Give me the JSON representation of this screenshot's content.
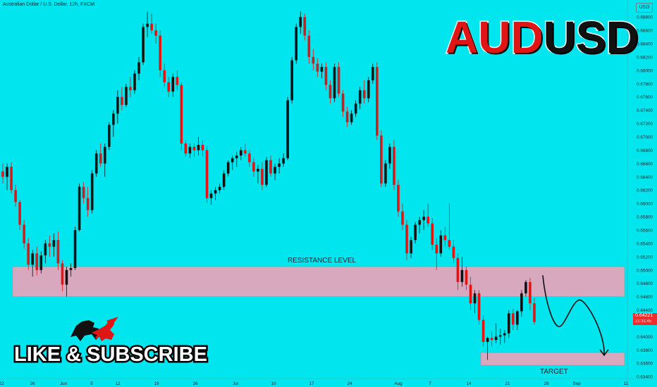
{
  "header": {
    "instrument": "Australian Dollar / U.S. Dollar, 12h, FXCM",
    "currency_badge": "USD"
  },
  "title": {
    "part1": "AUD",
    "part2": "USD"
  },
  "promo": {
    "text": "LIKE & SUBSCRIBE",
    "logo_icon": "bull-bear-icon"
  },
  "price_badge": {
    "price": "0.64221",
    "countdown": "21:31:45"
  },
  "colors": {
    "background": "#00e5ee",
    "bull_candle": "#111111",
    "bear_candle": "#e01616",
    "zone_fill": "#d8a9be",
    "zone_border": "#b98aa0"
  },
  "chart_data": {
    "type": "candlestick",
    "ylim": [
      0.6337,
      0.6895
    ],
    "y_ticks": [
      "0.68800",
      "0.68600",
      "0.68400",
      "0.68200",
      "0.68000",
      "0.67800",
      "0.67600",
      "0.67400",
      "0.67200",
      "0.67000",
      "0.66800",
      "0.66600",
      "0.66400",
      "0.66200",
      "0.66000",
      "0.65800",
      "0.65600",
      "0.65400",
      "0.65200",
      "0.65000",
      "0.64800",
      "0.64600",
      "0.64400",
      "0.64200",
      "0.64000",
      "0.63800",
      "0.63600",
      "0.63400"
    ],
    "x_ticks": [
      "22",
      "26",
      "Jun",
      "5",
      "12",
      "19",
      "26",
      "Jul",
      "10",
      "17",
      "24",
      "Aug",
      "7",
      "14",
      "21",
      "28",
      "Sep",
      "11"
    ],
    "zones": [
      {
        "label": "RESISTANCE LEVEL",
        "low": 0.646,
        "high": 0.6505
      },
      {
        "label": "TARGET",
        "low": 0.6357,
        "high": 0.6376
      }
    ],
    "candles": [
      {
        "o": 0.6648,
        "h": 0.666,
        "l": 0.663,
        "c": 0.664
      },
      {
        "o": 0.664,
        "h": 0.666,
        "l": 0.662,
        "c": 0.6655
      },
      {
        "o": 0.6655,
        "h": 0.6662,
        "l": 0.6615,
        "c": 0.662
      },
      {
        "o": 0.662,
        "h": 0.6628,
        "l": 0.6595,
        "c": 0.6602
      },
      {
        "o": 0.6602,
        "h": 0.6605,
        "l": 0.656,
        "c": 0.6568
      },
      {
        "o": 0.6568,
        "h": 0.6575,
        "l": 0.6532,
        "c": 0.654
      },
      {
        "o": 0.654,
        "h": 0.6548,
        "l": 0.65,
        "c": 0.6508
      },
      {
        "o": 0.6508,
        "h": 0.653,
        "l": 0.649,
        "c": 0.6525
      },
      {
        "o": 0.6525,
        "h": 0.6535,
        "l": 0.6492,
        "c": 0.65
      },
      {
        "o": 0.65,
        "h": 0.6528,
        "l": 0.6495,
        "c": 0.6522
      },
      {
        "o": 0.6522,
        "h": 0.6545,
        "l": 0.651,
        "c": 0.654
      },
      {
        "o": 0.654,
        "h": 0.6552,
        "l": 0.652,
        "c": 0.6535
      },
      {
        "o": 0.6535,
        "h": 0.6555,
        "l": 0.652,
        "c": 0.6545
      },
      {
        "o": 0.6545,
        "h": 0.6558,
        "l": 0.65,
        "c": 0.651
      },
      {
        "o": 0.651,
        "h": 0.6515,
        "l": 0.6468,
        "c": 0.6478
      },
      {
        "o": 0.6478,
        "h": 0.6505,
        "l": 0.646,
        "c": 0.65
      },
      {
        "o": 0.65,
        "h": 0.651,
        "l": 0.649,
        "c": 0.6503
      },
      {
        "o": 0.6503,
        "h": 0.6565,
        "l": 0.65,
        "c": 0.656
      },
      {
        "o": 0.656,
        "h": 0.663,
        "l": 0.6558,
        "c": 0.6625
      },
      {
        "o": 0.6625,
        "h": 0.6632,
        "l": 0.66,
        "c": 0.6608
      },
      {
        "o": 0.6608,
        "h": 0.6625,
        "l": 0.658,
        "c": 0.659
      },
      {
        "o": 0.659,
        "h": 0.665,
        "l": 0.6585,
        "c": 0.6645
      },
      {
        "o": 0.6645,
        "h": 0.668,
        "l": 0.664,
        "c": 0.6675
      },
      {
        "o": 0.6675,
        "h": 0.669,
        "l": 0.6655,
        "c": 0.666
      },
      {
        "o": 0.666,
        "h": 0.669,
        "l": 0.664,
        "c": 0.6685
      },
      {
        "o": 0.6685,
        "h": 0.6722,
        "l": 0.668,
        "c": 0.6718
      },
      {
        "o": 0.6718,
        "h": 0.674,
        "l": 0.67,
        "c": 0.6735
      },
      {
        "o": 0.6735,
        "h": 0.677,
        "l": 0.672,
        "c": 0.676
      },
      {
        "o": 0.676,
        "h": 0.6775,
        "l": 0.674,
        "c": 0.6748
      },
      {
        "o": 0.6748,
        "h": 0.678,
        "l": 0.6745,
        "c": 0.6775
      },
      {
        "o": 0.6775,
        "h": 0.679,
        "l": 0.676,
        "c": 0.677
      },
      {
        "o": 0.677,
        "h": 0.68,
        "l": 0.6765,
        "c": 0.6795
      },
      {
        "o": 0.6795,
        "h": 0.682,
        "l": 0.6785,
        "c": 0.6812
      },
      {
        "o": 0.6812,
        "h": 0.687,
        "l": 0.6808,
        "c": 0.6865
      },
      {
        "o": 0.6865,
        "h": 0.6888,
        "l": 0.685,
        "c": 0.687
      },
      {
        "o": 0.687,
        "h": 0.6885,
        "l": 0.6855,
        "c": 0.686
      },
      {
        "o": 0.686,
        "h": 0.687,
        "l": 0.684,
        "c": 0.6852
      },
      {
        "o": 0.6852,
        "h": 0.686,
        "l": 0.679,
        "c": 0.68
      },
      {
        "o": 0.68,
        "h": 0.681,
        "l": 0.6775,
        "c": 0.6782
      },
      {
        "o": 0.6782,
        "h": 0.679,
        "l": 0.676,
        "c": 0.6768
      },
      {
        "o": 0.6768,
        "h": 0.6795,
        "l": 0.676,
        "c": 0.679
      },
      {
        "o": 0.679,
        "h": 0.68,
        "l": 0.677,
        "c": 0.6778
      },
      {
        "o": 0.6778,
        "h": 0.6782,
        "l": 0.668,
        "c": 0.669
      },
      {
        "o": 0.669,
        "h": 0.6695,
        "l": 0.667,
        "c": 0.6675
      },
      {
        "o": 0.6675,
        "h": 0.669,
        "l": 0.6668,
        "c": 0.6685
      },
      {
        "o": 0.6685,
        "h": 0.669,
        "l": 0.667,
        "c": 0.668
      },
      {
        "o": 0.668,
        "h": 0.67,
        "l": 0.6672,
        "c": 0.6688
      },
      {
        "o": 0.6688,
        "h": 0.6695,
        "l": 0.667,
        "c": 0.668
      },
      {
        "o": 0.668,
        "h": 0.6686,
        "l": 0.66,
        "c": 0.6608
      },
      {
        "o": 0.6608,
        "h": 0.662,
        "l": 0.6598,
        "c": 0.6615
      },
      {
        "o": 0.6615,
        "h": 0.6625,
        "l": 0.6605,
        "c": 0.662
      },
      {
        "o": 0.662,
        "h": 0.663,
        "l": 0.6615,
        "c": 0.6625
      },
      {
        "o": 0.6625,
        "h": 0.665,
        "l": 0.662,
        "c": 0.6645
      },
      {
        "o": 0.6645,
        "h": 0.6665,
        "l": 0.664,
        "c": 0.6662
      },
      {
        "o": 0.6662,
        "h": 0.6672,
        "l": 0.665,
        "c": 0.6668
      },
      {
        "o": 0.6668,
        "h": 0.6678,
        "l": 0.6655,
        "c": 0.6672
      },
      {
        "o": 0.6672,
        "h": 0.6685,
        "l": 0.6665,
        "c": 0.668
      },
      {
        "o": 0.668,
        "h": 0.669,
        "l": 0.667,
        "c": 0.6675
      },
      {
        "o": 0.6675,
        "h": 0.668,
        "l": 0.6655,
        "c": 0.6662
      },
      {
        "o": 0.6662,
        "h": 0.6668,
        "l": 0.664,
        "c": 0.6648
      },
      {
        "o": 0.6648,
        "h": 0.6658,
        "l": 0.663,
        "c": 0.6652
      },
      {
        "o": 0.6652,
        "h": 0.6662,
        "l": 0.662,
        "c": 0.6628
      },
      {
        "o": 0.6628,
        "h": 0.667,
        "l": 0.6625,
        "c": 0.6665
      },
      {
        "o": 0.6665,
        "h": 0.6672,
        "l": 0.664,
        "c": 0.6645
      },
      {
        "o": 0.6645,
        "h": 0.666,
        "l": 0.6635,
        "c": 0.6655
      },
      {
        "o": 0.6655,
        "h": 0.6668,
        "l": 0.6645,
        "c": 0.666
      },
      {
        "o": 0.666,
        "h": 0.6675,
        "l": 0.6655,
        "c": 0.6668
      },
      {
        "o": 0.6668,
        "h": 0.676,
        "l": 0.6665,
        "c": 0.6755
      },
      {
        "o": 0.6755,
        "h": 0.682,
        "l": 0.675,
        "c": 0.6815
      },
      {
        "o": 0.6815,
        "h": 0.687,
        "l": 0.681,
        "c": 0.6865
      },
      {
        "o": 0.6865,
        "h": 0.6888,
        "l": 0.6855,
        "c": 0.688
      },
      {
        "o": 0.688,
        "h": 0.6885,
        "l": 0.6845,
        "c": 0.6852
      },
      {
        "o": 0.6852,
        "h": 0.686,
        "l": 0.681,
        "c": 0.682
      },
      {
        "o": 0.682,
        "h": 0.6832,
        "l": 0.68,
        "c": 0.681
      },
      {
        "o": 0.681,
        "h": 0.6818,
        "l": 0.679,
        "c": 0.6798
      },
      {
        "o": 0.6798,
        "h": 0.681,
        "l": 0.6788,
        "c": 0.6805
      },
      {
        "o": 0.6805,
        "h": 0.6812,
        "l": 0.677,
        "c": 0.6778
      },
      {
        "o": 0.6778,
        "h": 0.6785,
        "l": 0.675,
        "c": 0.6758
      },
      {
        "o": 0.6758,
        "h": 0.681,
        "l": 0.6752,
        "c": 0.6805
      },
      {
        "o": 0.6805,
        "h": 0.6812,
        "l": 0.676,
        "c": 0.6765
      },
      {
        "o": 0.6765,
        "h": 0.677,
        "l": 0.673,
        "c": 0.6738
      },
      {
        "o": 0.6738,
        "h": 0.6745,
        "l": 0.6715,
        "c": 0.6722
      },
      {
        "o": 0.6722,
        "h": 0.674,
        "l": 0.6718,
        "c": 0.6735
      },
      {
        "o": 0.6735,
        "h": 0.6755,
        "l": 0.673,
        "c": 0.675
      },
      {
        "o": 0.675,
        "h": 0.6775,
        "l": 0.6742,
        "c": 0.677
      },
      {
        "o": 0.677,
        "h": 0.6785,
        "l": 0.675,
        "c": 0.6758
      },
      {
        "o": 0.6758,
        "h": 0.679,
        "l": 0.6752,
        "c": 0.6785
      },
      {
        "o": 0.6785,
        "h": 0.681,
        "l": 0.678,
        "c": 0.6805
      },
      {
        "o": 0.6805,
        "h": 0.6812,
        "l": 0.6695,
        "c": 0.6702
      },
      {
        "o": 0.6702,
        "h": 0.671,
        "l": 0.6625,
        "c": 0.663
      },
      {
        "o": 0.663,
        "h": 0.6665,
        "l": 0.6625,
        "c": 0.666
      },
      {
        "o": 0.666,
        "h": 0.669,
        "l": 0.6652,
        "c": 0.6685
      },
      {
        "o": 0.6685,
        "h": 0.6695,
        "l": 0.662,
        "c": 0.6628
      },
      {
        "o": 0.6628,
        "h": 0.6635,
        "l": 0.658,
        "c": 0.6588
      },
      {
        "o": 0.6588,
        "h": 0.66,
        "l": 0.656,
        "c": 0.6568
      },
      {
        "o": 0.6568,
        "h": 0.6575,
        "l": 0.6515,
        "c": 0.6525
      },
      {
        "o": 0.6525,
        "h": 0.655,
        "l": 0.6518,
        "c": 0.6545
      },
      {
        "o": 0.6545,
        "h": 0.6572,
        "l": 0.654,
        "c": 0.6568
      },
      {
        "o": 0.6568,
        "h": 0.658,
        "l": 0.6555,
        "c": 0.6575
      },
      {
        "o": 0.6575,
        "h": 0.659,
        "l": 0.656,
        "c": 0.658
      },
      {
        "o": 0.658,
        "h": 0.66,
        "l": 0.6565,
        "c": 0.657
      },
      {
        "o": 0.657,
        "h": 0.6578,
        "l": 0.653,
        "c": 0.6538
      },
      {
        "o": 0.6538,
        "h": 0.6548,
        "l": 0.65,
        "c": 0.6525
      },
      {
        "o": 0.6525,
        "h": 0.656,
        "l": 0.652,
        "c": 0.6552
      },
      {
        "o": 0.6552,
        "h": 0.6565,
        "l": 0.6535,
        "c": 0.6545
      },
      {
        "o": 0.6545,
        "h": 0.66,
        "l": 0.653,
        "c": 0.6535
      },
      {
        "o": 0.6535,
        "h": 0.6545,
        "l": 0.651,
        "c": 0.6518
      },
      {
        "o": 0.6518,
        "h": 0.6525,
        "l": 0.647,
        "c": 0.6482
      },
      {
        "o": 0.6482,
        "h": 0.652,
        "l": 0.6475,
        "c": 0.65
      },
      {
        "o": 0.65,
        "h": 0.6505,
        "l": 0.647,
        "c": 0.6478
      },
      {
        "o": 0.6478,
        "h": 0.649,
        "l": 0.644,
        "c": 0.645
      },
      {
        "o": 0.645,
        "h": 0.647,
        "l": 0.6435,
        "c": 0.6465
      },
      {
        "o": 0.6465,
        "h": 0.647,
        "l": 0.6418,
        "c": 0.6425
      },
      {
        "o": 0.6425,
        "h": 0.6432,
        "l": 0.6385,
        "c": 0.6392
      },
      {
        "o": 0.6392,
        "h": 0.64,
        "l": 0.6365,
        "c": 0.6398
      },
      {
        "o": 0.6398,
        "h": 0.6408,
        "l": 0.6385,
        "c": 0.6395
      },
      {
        "o": 0.6395,
        "h": 0.642,
        "l": 0.639,
        "c": 0.64
      },
      {
        "o": 0.64,
        "h": 0.6412,
        "l": 0.6388,
        "c": 0.6402
      },
      {
        "o": 0.6402,
        "h": 0.641,
        "l": 0.639,
        "c": 0.6405
      },
      {
        "o": 0.6405,
        "h": 0.644,
        "l": 0.6398,
        "c": 0.6435
      },
      {
        "o": 0.6435,
        "h": 0.6442,
        "l": 0.641,
        "c": 0.6418
      },
      {
        "o": 0.6418,
        "h": 0.644,
        "l": 0.641,
        "c": 0.6438
      },
      {
        "o": 0.6438,
        "h": 0.647,
        "l": 0.643,
        "c": 0.6465
      },
      {
        "o": 0.6465,
        "h": 0.6485,
        "l": 0.646,
        "c": 0.6482
      },
      {
        "o": 0.6482,
        "h": 0.6488,
        "l": 0.644,
        "c": 0.645
      },
      {
        "o": 0.645,
        "h": 0.6458,
        "l": 0.6418,
        "c": 0.6422
      }
    ],
    "projection": [
      [
        0.6492,
        0
      ],
      [
        0.6415,
        8
      ],
      [
        0.6455,
        18
      ],
      [
        0.6372,
        30
      ]
    ]
  }
}
